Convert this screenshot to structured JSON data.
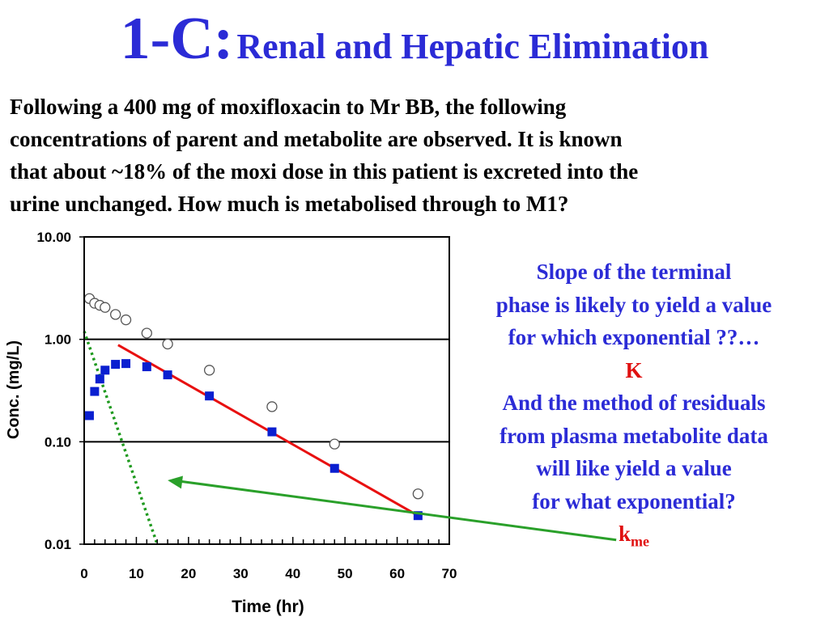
{
  "title": {
    "prefix": "1-C:",
    "text": "Renal and Hepatic Elimination"
  },
  "intro_lines": [
    "Following a 400 mg of moxifloxacin to Mr BB, the following",
    "concentrations of parent and metabolite are observed.  It is known",
    "that about ~18% of the moxi dose in this patient is excreted into the",
    "urine unchanged.  How much is metabolised through to M1?"
  ],
  "side_text": {
    "lines": [
      "Slope of the terminal",
      "phase is likely to yield a value",
      "for which exponential ??…"
    ],
    "answer1": "K",
    "lines2": [
      "And the method of residuals",
      "from plasma metabolite data",
      "will like yield a value",
      "for what exponential?"
    ],
    "answer2_main": "k",
    "answer2_sub": "me"
  },
  "colors": {
    "title": "#2b2bd6",
    "answer": "#e01010",
    "open_circle": "#555555",
    "square": "#0a1fd0",
    "fit_line": "#e81010",
    "residual_line": "#1f9a1f",
    "arrow": "#2aa02a"
  },
  "chart_data": {
    "type": "scatter",
    "xlabel": "Time (hr)",
    "ylabel": "Conc. (mg/L)",
    "xlim": [
      0,
      70
    ],
    "ylim": [
      0.01,
      10
    ],
    "y_scale": "log",
    "x_ticks": [
      "0",
      "10",
      "20",
      "30",
      "40",
      "50",
      "60",
      "70"
    ],
    "y_ticks": [
      "0.01",
      "0.10",
      "1.00",
      "10.00"
    ],
    "y_tick_values": [
      0.01,
      0.1,
      1,
      10
    ],
    "grid": "horizontal at decades",
    "series": [
      {
        "marker": "open-circle",
        "points": [
          [
            1,
            2.5
          ],
          [
            2,
            2.25
          ],
          [
            3,
            2.15
          ],
          [
            4,
            2.05
          ],
          [
            6,
            1.75
          ],
          [
            8,
            1.55
          ],
          [
            12,
            1.15
          ],
          [
            16,
            0.9
          ],
          [
            24,
            0.5
          ],
          [
            36,
            0.22
          ],
          [
            48,
            0.095
          ],
          [
            64,
            0.031
          ]
        ]
      },
      {
        "marker": "filled-square",
        "points": [
          [
            1,
            0.18
          ],
          [
            2,
            0.31
          ],
          [
            3,
            0.41
          ],
          [
            4,
            0.5
          ],
          [
            6,
            0.57
          ],
          [
            8,
            0.58
          ],
          [
            12,
            0.54
          ],
          [
            16,
            0.45
          ],
          [
            24,
            0.28
          ],
          [
            36,
            0.125
          ],
          [
            48,
            0.055
          ],
          [
            64,
            0.019
          ]
        ]
      }
    ],
    "lines": [
      {
        "role": "terminal-fit",
        "style": "solid",
        "from": [
          6.5,
          0.88
        ],
        "to": [
          64,
          0.019
        ]
      },
      {
        "role": "residual",
        "style": "dotted",
        "from": [
          0,
          1.2
        ],
        "to": [
          14,
          0.01
        ]
      }
    ],
    "arrow": {
      "from": [
        102,
        0.011
      ],
      "to": [
        16,
        0.042
      ]
    }
  }
}
